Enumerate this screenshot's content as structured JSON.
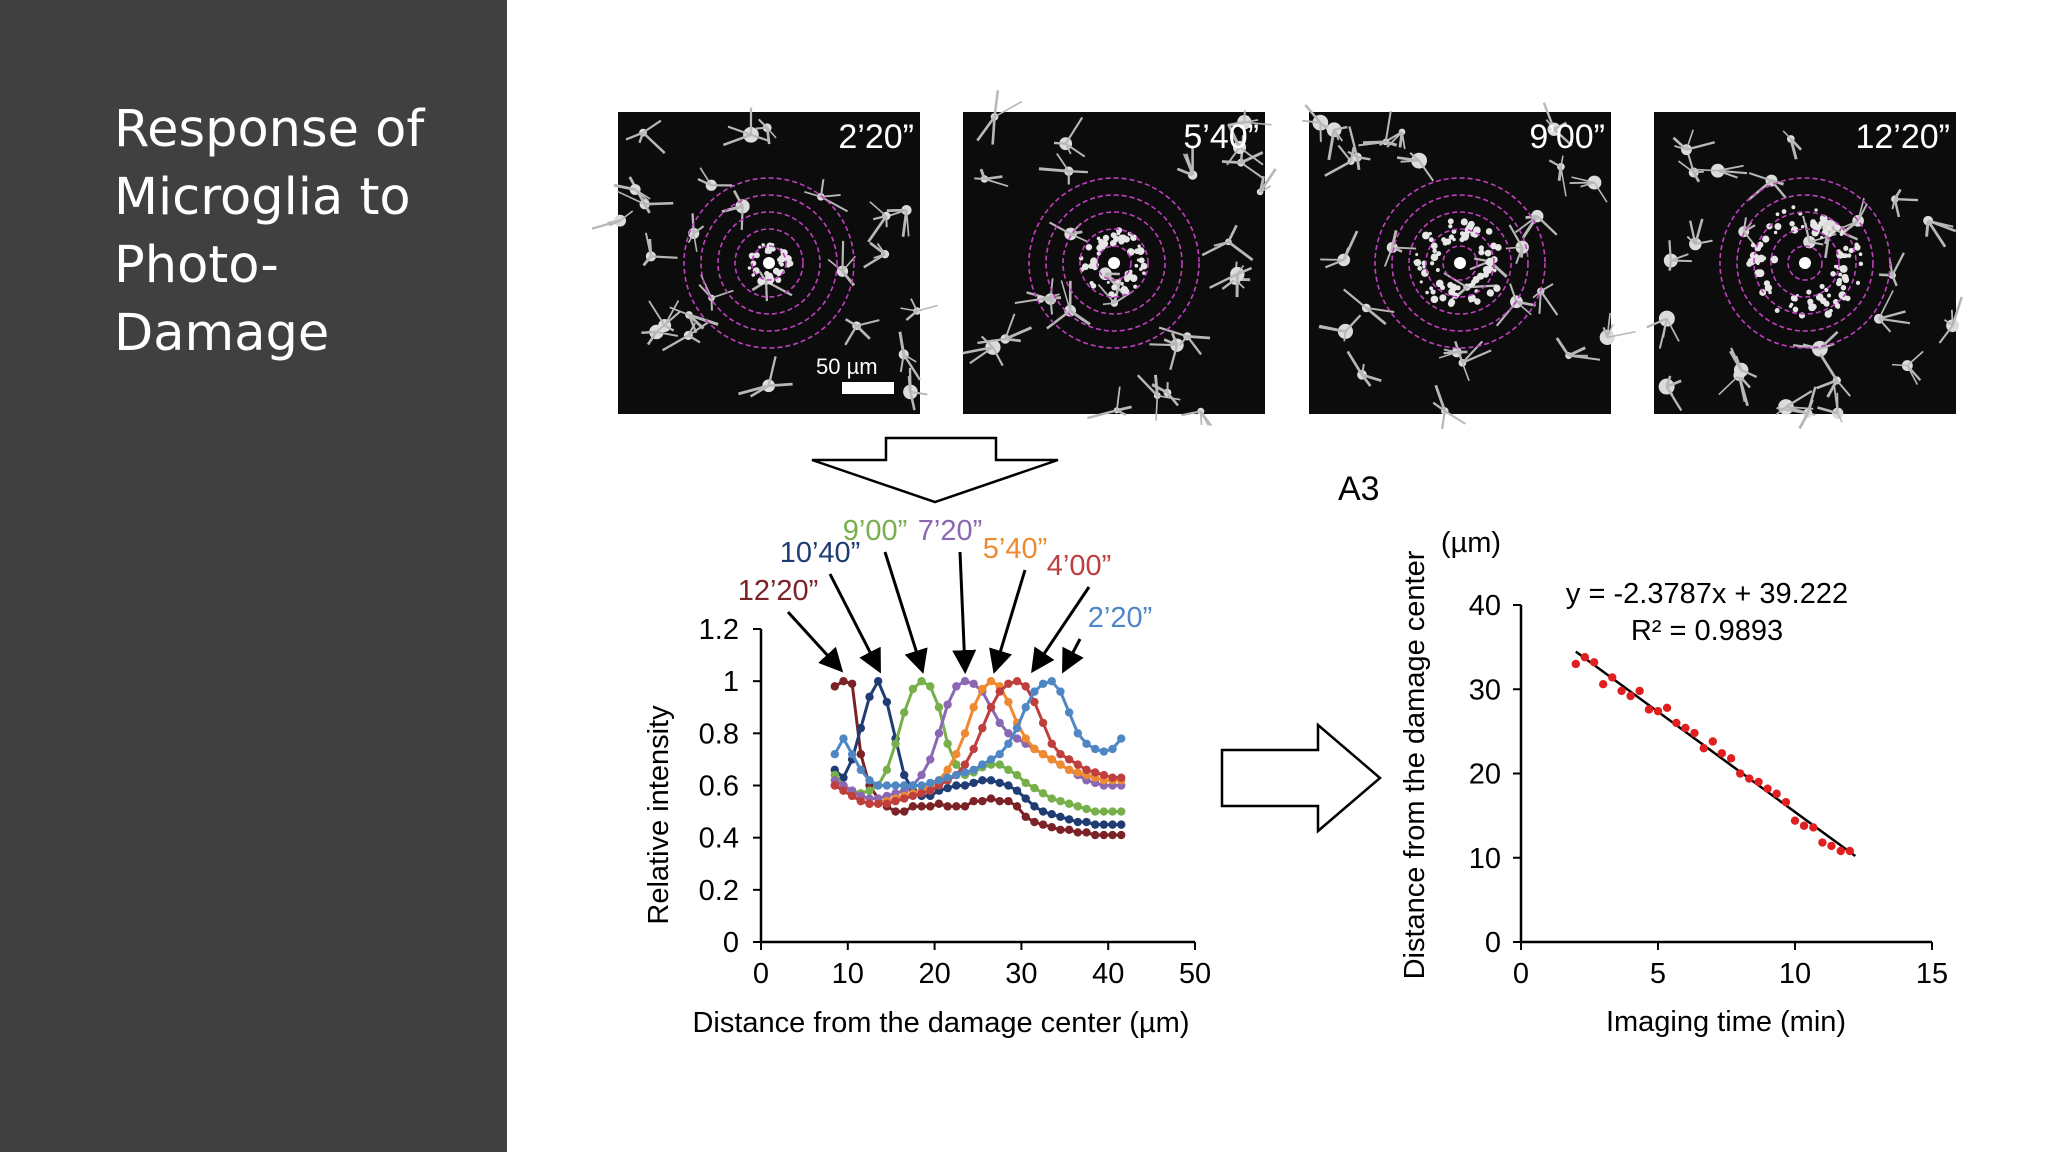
{
  "slide": {
    "title": "Response of Microglia to Photo-Damage",
    "sidebar_color": "#404040"
  },
  "images": {
    "panels": [
      {
        "time": "2’20”",
        "ring_count": 5
      },
      {
        "time": "5’40”",
        "ring_count": 5
      },
      {
        "time": "9’00”",
        "ring_count": 5
      },
      {
        "time": "12’20”",
        "ring_count": 5
      }
    ],
    "scale_bar_label": "50 µm",
    "ring_color": "#c040c0"
  },
  "panel_tag": "A3",
  "chart_data": [
    {
      "type": "line",
      "xlabel": "Distance from the damage center (µm)",
      "ylabel": "Relative intensity",
      "xlim": [
        0,
        50
      ],
      "ylim": [
        0,
        1.2
      ],
      "xticks": [
        "0",
        "10",
        "20",
        "30",
        "40",
        "50"
      ],
      "yticks": [
        "0",
        "0.2",
        "0.4",
        "0.6",
        "0.8",
        "1",
        "1.2"
      ],
      "x": [
        8.5,
        9.5,
        10.5,
        11.5,
        12.5,
        13.5,
        14.5,
        15.5,
        16.5,
        17.5,
        18.5,
        19.5,
        20.5,
        21.5,
        22.5,
        23.5,
        24.5,
        25.5,
        26.5,
        27.5,
        28.5,
        29.5,
        30.5,
        31.5,
        32.5,
        33.5,
        34.5,
        35.5,
        36.5,
        37.5,
        38.5,
        39.5,
        40.5,
        41.5
      ],
      "series": [
        {
          "name": "12’20”",
          "color": "#7b2226",
          "values": [
            0.98,
            1.0,
            0.99,
            0.72,
            0.6,
            0.55,
            0.52,
            0.5,
            0.5,
            0.52,
            0.52,
            0.52,
            0.53,
            0.52,
            0.52,
            0.52,
            0.54,
            0.54,
            0.55,
            0.54,
            0.54,
            0.52,
            0.48,
            0.46,
            0.45,
            0.44,
            0.43,
            0.43,
            0.42,
            0.42,
            0.41,
            0.41,
            0.41,
            0.41
          ]
        },
        {
          "name": "10’40”",
          "color": "#1f3d73",
          "values": [
            0.66,
            0.63,
            0.7,
            0.82,
            0.94,
            1.0,
            0.92,
            0.78,
            0.64,
            0.58,
            0.56,
            0.56,
            0.58,
            0.59,
            0.6,
            0.6,
            0.61,
            0.62,
            0.62,
            0.61,
            0.6,
            0.58,
            0.55,
            0.52,
            0.5,
            0.49,
            0.48,
            0.47,
            0.46,
            0.46,
            0.45,
            0.45,
            0.45,
            0.45
          ]
        },
        {
          "name": "9’00”",
          "color": "#77b04a",
          "values": [
            0.64,
            0.6,
            0.58,
            0.57,
            0.58,
            0.6,
            0.66,
            0.76,
            0.88,
            0.97,
            1.0,
            0.98,
            0.9,
            0.76,
            0.68,
            0.64,
            0.65,
            0.67,
            0.68,
            0.68,
            0.66,
            0.64,
            0.61,
            0.59,
            0.57,
            0.55,
            0.54,
            0.53,
            0.52,
            0.51,
            0.5,
            0.5,
            0.5,
            0.5
          ]
        },
        {
          "name": "7’20”",
          "color": "#8a68b4",
          "values": [
            0.62,
            0.6,
            0.58,
            0.56,
            0.55,
            0.55,
            0.56,
            0.57,
            0.58,
            0.6,
            0.64,
            0.7,
            0.8,
            0.91,
            0.98,
            1.0,
            0.99,
            0.96,
            0.9,
            0.84,
            0.8,
            0.78,
            0.76,
            0.74,
            0.72,
            0.7,
            0.68,
            0.66,
            0.64,
            0.62,
            0.61,
            0.6,
            0.6,
            0.6
          ]
        },
        {
          "name": "5’40”",
          "color": "#f08a30",
          "values": [
            0.6,
            0.58,
            0.56,
            0.54,
            0.53,
            0.53,
            0.54,
            0.55,
            0.56,
            0.57,
            0.58,
            0.6,
            0.62,
            0.66,
            0.72,
            0.8,
            0.9,
            0.97,
            1.0,
            0.98,
            0.92,
            0.84,
            0.78,
            0.74,
            0.72,
            0.7,
            0.68,
            0.66,
            0.65,
            0.64,
            0.63,
            0.62,
            0.62,
            0.62
          ]
        },
        {
          "name": "4’00”",
          "color": "#bf3f3f",
          "values": [
            0.6,
            0.58,
            0.56,
            0.54,
            0.53,
            0.53,
            0.53,
            0.54,
            0.55,
            0.56,
            0.57,
            0.58,
            0.6,
            0.62,
            0.64,
            0.68,
            0.74,
            0.82,
            0.9,
            0.96,
            0.99,
            1.0,
            0.98,
            0.92,
            0.84,
            0.76,
            0.72,
            0.7,
            0.68,
            0.66,
            0.65,
            0.64,
            0.63,
            0.63
          ]
        },
        {
          "name": "2’20”",
          "color": "#4f87c4",
          "values": [
            0.72,
            0.78,
            0.72,
            0.66,
            0.62,
            0.6,
            0.6,
            0.6,
            0.6,
            0.6,
            0.6,
            0.61,
            0.62,
            0.63,
            0.64,
            0.65,
            0.66,
            0.68,
            0.7,
            0.72,
            0.76,
            0.82,
            0.9,
            0.96,
            0.99,
            1.0,
            0.96,
            0.88,
            0.8,
            0.76,
            0.74,
            0.73,
            0.74,
            0.78
          ]
        }
      ]
    },
    {
      "type": "scatter",
      "xlabel": "Imaging time (min)",
      "ylabel": "Distance from the damage center",
      "unit_label": "(µm)",
      "xlim": [
        0,
        15
      ],
      "ylim": [
        0,
        40
      ],
      "xticks": [
        "0",
        "5",
        "10",
        "15"
      ],
      "yticks": [
        "0",
        "10",
        "20",
        "30",
        "40"
      ],
      "equation": "y = -2.3787x + 39.222",
      "r_squared": "R² = 0.9893",
      "trendline": {
        "slope": -2.3787,
        "intercept": 39.222,
        "x_range": [
          2.0,
          12.2
        ],
        "color": "#000000"
      },
      "point_color": "#e02020",
      "points": [
        [
          2.0,
          33.0
        ],
        [
          2.33,
          33.8
        ],
        [
          2.67,
          33.2
        ],
        [
          3.0,
          30.6
        ],
        [
          3.33,
          31.4
        ],
        [
          3.67,
          29.8
        ],
        [
          4.0,
          29.2
        ],
        [
          4.33,
          29.8
        ],
        [
          4.67,
          27.6
        ],
        [
          5.0,
          27.4
        ],
        [
          5.33,
          27.8
        ],
        [
          5.67,
          26.0
        ],
        [
          6.0,
          25.4
        ],
        [
          6.33,
          24.8
        ],
        [
          6.67,
          23.0
        ],
        [
          7.0,
          23.8
        ],
        [
          7.33,
          22.4
        ],
        [
          7.67,
          21.8
        ],
        [
          8.0,
          20.0
        ],
        [
          8.33,
          19.4
        ],
        [
          8.67,
          19.0
        ],
        [
          9.0,
          18.2
        ],
        [
          9.33,
          17.6
        ],
        [
          9.67,
          16.6
        ],
        [
          10.0,
          14.4
        ],
        [
          10.33,
          13.8
        ],
        [
          10.67,
          13.6
        ],
        [
          11.0,
          11.8
        ],
        [
          11.33,
          11.4
        ],
        [
          11.67,
          10.8
        ],
        [
          12.0,
          10.8
        ]
      ]
    }
  ]
}
